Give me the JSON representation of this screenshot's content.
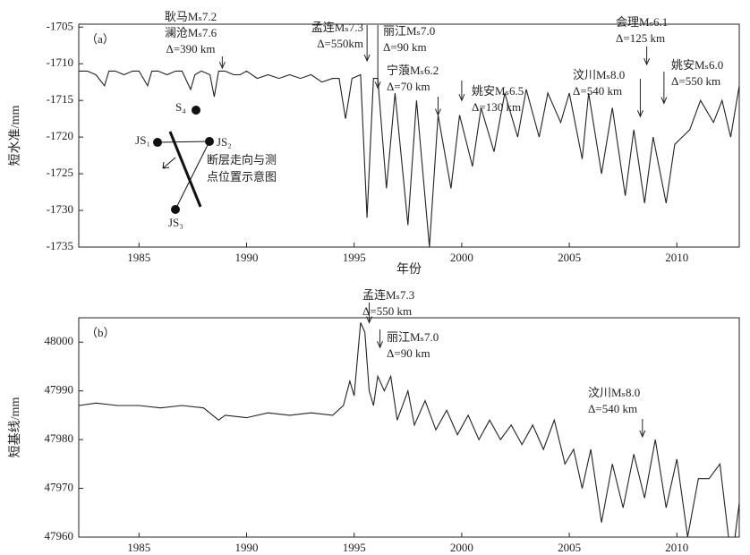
{
  "chart_data": [
    {
      "type": "line",
      "panel_label": "（a）",
      "y_label": "短水准/mm",
      "x_label": "年份",
      "xlim": [
        1982.2,
        2012.9
      ],
      "ylim": [
        -1735,
        -1704.6
      ],
      "xticks": [
        1985,
        1990,
        1995,
        2000,
        2005,
        2010
      ],
      "yticks": [
        -1705,
        -1710,
        -1715,
        -1720,
        -1725,
        -1730,
        -1735
      ],
      "series": [
        {
          "color": "#222222",
          "x": [
            1982.2,
            1982.6,
            1983.0,
            1983.4,
            1983.6,
            1983.9,
            1984.3,
            1984.7,
            1985.0,
            1985.4,
            1985.6,
            1985.9,
            1986.3,
            1986.7,
            1987.0,
            1987.4,
            1987.6,
            1987.9,
            1988.3,
            1988.5,
            1988.7,
            1989.0,
            1989.4,
            1989.7,
            1990.0,
            1990.5,
            1991.0,
            1991.5,
            1992.0,
            1992.5,
            1993.0,
            1993.5,
            1994.0,
            1994.3,
            1994.6,
            1994.9,
            1995.3,
            1995.6,
            1995.9,
            1996.1,
            1996.5,
            1996.9,
            1997.5,
            1997.9,
            1998.5,
            1998.9,
            1999.5,
            1999.9,
            2000.5,
            2000.9,
            2001.5,
            2002.0,
            2002.6,
            2003.0,
            2003.6,
            2004.0,
            2004.6,
            2005.0,
            2005.6,
            2005.9,
            2006.5,
            2007.0,
            2007.6,
            2008.0,
            2008.5,
            2008.9,
            2009.5,
            2009.9,
            2010.6,
            2011.1,
            2011.7,
            2012.1,
            2012.5,
            2012.9
          ],
          "values": [
            -1711,
            -1711,
            -1711.5,
            -1713,
            -1711,
            -1711,
            -1711.5,
            -1711,
            -1711,
            -1713,
            -1711,
            -1711,
            -1711.5,
            -1711,
            -1711,
            -1713.5,
            -1711.5,
            -1711,
            -1711.5,
            -1714.5,
            -1711,
            -1711,
            -1711.5,
            -1711.5,
            -1711,
            -1712,
            -1711.5,
            -1712,
            -1711.5,
            -1712,
            -1711.5,
            -1712.5,
            -1712,
            -1712,
            -1717.5,
            -1712,
            -1711.5,
            -1731,
            -1712,
            -1712,
            -1727,
            -1714,
            -1732,
            -1715,
            -1735,
            -1717,
            -1727,
            -1717,
            -1724,
            -1716,
            -1722,
            -1714,
            -1720,
            -1713.5,
            -1720,
            -1714,
            -1718,
            -1714,
            -1723,
            -1714,
            -1725,
            -1716,
            -1728,
            -1719,
            -1729,
            -1720,
            -1729,
            -1721,
            -1719,
            -1715,
            -1718,
            -1715,
            -1720,
            -1713
          ]
        }
      ],
      "annotations": [
        {
          "lines": [
            "耿马Mₛ7.2",
            "澜沧Mₛ7.6",
            "Δ=390 km"
          ],
          "x": 1988.87,
          "y": -1710.6
        },
        {
          "lines": [
            "孟连Mₛ7.3",
            "Δ=550km"
          ],
          "x": 1995.6,
          "y": -1709.6
        },
        {
          "lines": [
            "丽江Mₛ7.0",
            "Δ=90 km"
          ],
          "x": 1996.1,
          "y": -1713.3
        },
        {
          "lines": [
            "宁蒗Mₛ6.2",
            "Δ=70 km"
          ],
          "x": 1998.9,
          "y": -1717.0
        },
        {
          "lines": [
            "姚安Mₛ6.5",
            "Δ=130 km"
          ],
          "x": 2000.0,
          "y": -1715.0
        },
        {
          "lines": [
            "汶川Mₛ8.0",
            "Δ=540 km"
          ],
          "x": 2008.3,
          "y": -1717.2
        },
        {
          "lines": [
            "会理Mₛ6.1",
            "Δ=125 km"
          ],
          "x": 2008.6,
          "y": -1710.1
        },
        {
          "lines": [
            "姚安Mₛ6.0",
            "Δ=550 km"
          ],
          "x": 2009.4,
          "y": -1715.4
        }
      ],
      "inset": {
        "labels": [
          "S₄",
          "JS₁",
          "JS₂",
          "JS₃"
        ],
        "caption": [
          "断层走向与测",
          "点位置示意图"
        ]
      }
    },
    {
      "type": "line",
      "panel_label": "（b）",
      "y_label": "短基线/mm",
      "xlim": [
        1982.2,
        2012.9
      ],
      "ylim": [
        47960,
        48005
      ],
      "xticks": [
        1985,
        1990,
        1995,
        2000,
        2005,
        2010
      ],
      "yticks": [
        47960,
        47970,
        47980,
        47990,
        48000
      ],
      "series": [
        {
          "color": "#222222",
          "x": [
            1982.2,
            1983.0,
            1984.0,
            1985.0,
            1986.0,
            1987.0,
            1988.0,
            1988.7,
            1989.0,
            1990.0,
            1991.0,
            1992.0,
            1993.0,
            1994.0,
            1994.5,
            1994.8,
            1995.0,
            1995.3,
            1995.5,
            1995.7,
            1995.9,
            1996.1,
            1996.4,
            1996.7,
            1997.0,
            1997.5,
            1997.8,
            1998.3,
            1998.8,
            1999.3,
            1999.8,
            2000.3,
            2000.8,
            2001.3,
            2001.8,
            2002.3,
            2002.8,
            2003.3,
            2003.8,
            2004.3,
            2004.8,
            2005.2,
            2005.6,
            2006.0,
            2006.5,
            2007.0,
            2007.5,
            2008.0,
            2008.5,
            2009.0,
            2009.5,
            2010.0,
            2010.5,
            2011.0,
            2011.5,
            2012.0,
            2012.4,
            2012.7,
            2012.9
          ],
          "values": [
            47987,
            47987.5,
            47987,
            47987,
            47986.5,
            47987,
            47986.5,
            47984,
            47985,
            47984.5,
            47985.5,
            47985,
            47985.5,
            47985,
            47987,
            47992,
            47989,
            48004,
            48002,
            47990,
            47987,
            47993,
            47990,
            47993,
            47984,
            47990,
            47983,
            47988,
            47982,
            47986,
            47981,
            47985,
            47980,
            47984,
            47980,
            47983,
            47979,
            47983,
            47978,
            47984,
            47975,
            47978,
            47970,
            47978,
            47963,
            47975,
            47966,
            47977,
            47968,
            47980,
            47966,
            47976,
            47960,
            47972,
            47972,
            47975,
            47960,
            47960,
            47967
          ]
        }
      ],
      "annotations": [
        {
          "lines": [
            "孟连Mₛ7.3",
            "Δ=550 km"
          ],
          "x": 1995.7,
          "y": 48004.0
        },
        {
          "lines": [
            "丽江Mₛ7.0",
            "Δ=90 km"
          ],
          "x": 1996.2,
          "y": 47998.9
        },
        {
          "lines": [
            "汶川Mₛ8.0",
            "Δ=540 km"
          ],
          "x": 2008.4,
          "y": 47980.6
        }
      ]
    }
  ]
}
